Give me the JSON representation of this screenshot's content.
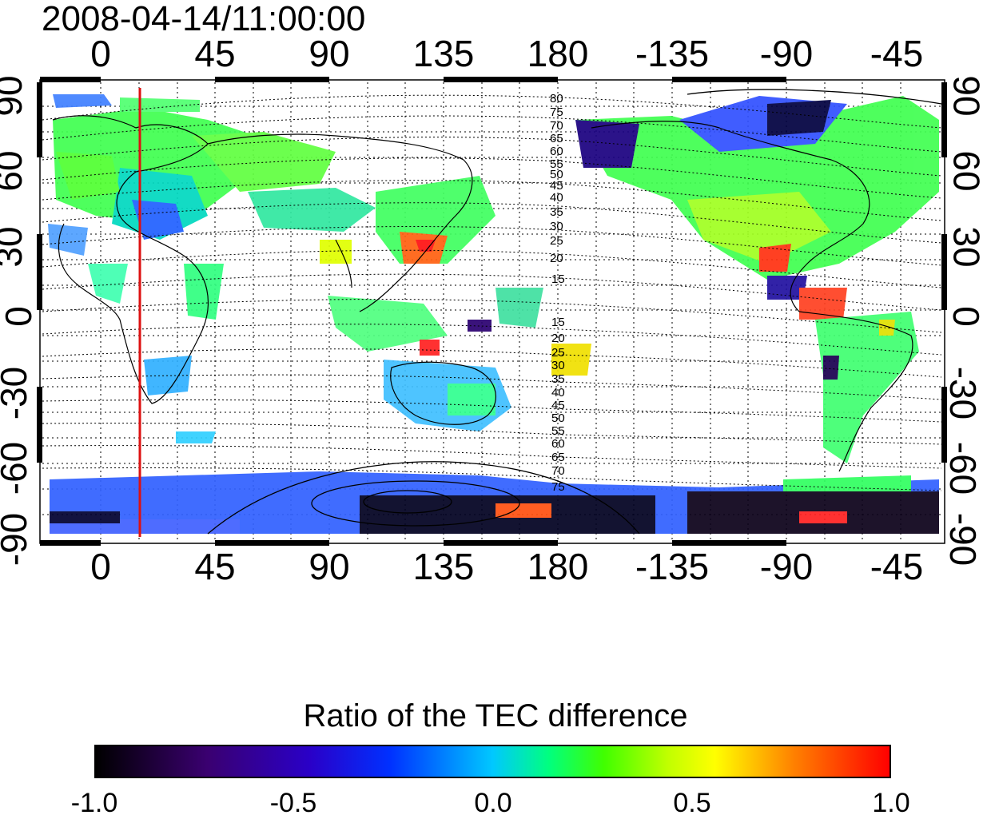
{
  "title": "2008-04-14/11:00:00",
  "longitude_ticks": [
    "0",
    "45",
    "90",
    "135",
    "180",
    "-135",
    "-90",
    "-45"
  ],
  "latitude_ticks": [
    "90",
    "60",
    "30",
    "0",
    "-30",
    "-60",
    "-90"
  ],
  "contour_labels_north": [
    "80",
    "75",
    "70",
    "65",
    "60",
    "55",
    "50",
    "45",
    "40",
    "35",
    "30",
    "25",
    "20",
    "15"
  ],
  "contour_labels_south": [
    "15",
    "20",
    "25",
    "30",
    "35",
    "40",
    "45",
    "50",
    "55",
    "60",
    "65",
    "70",
    "75"
  ],
  "colorbar": {
    "title": "Ratio of the TEC difference",
    "ticks": [
      "-1.0",
      "-0.5",
      "0.0",
      "0.5",
      "1.0"
    ]
  },
  "colors": {
    "marker_line": "#dd1111",
    "grid": "#000000"
  },
  "marker_longitude": 15
}
